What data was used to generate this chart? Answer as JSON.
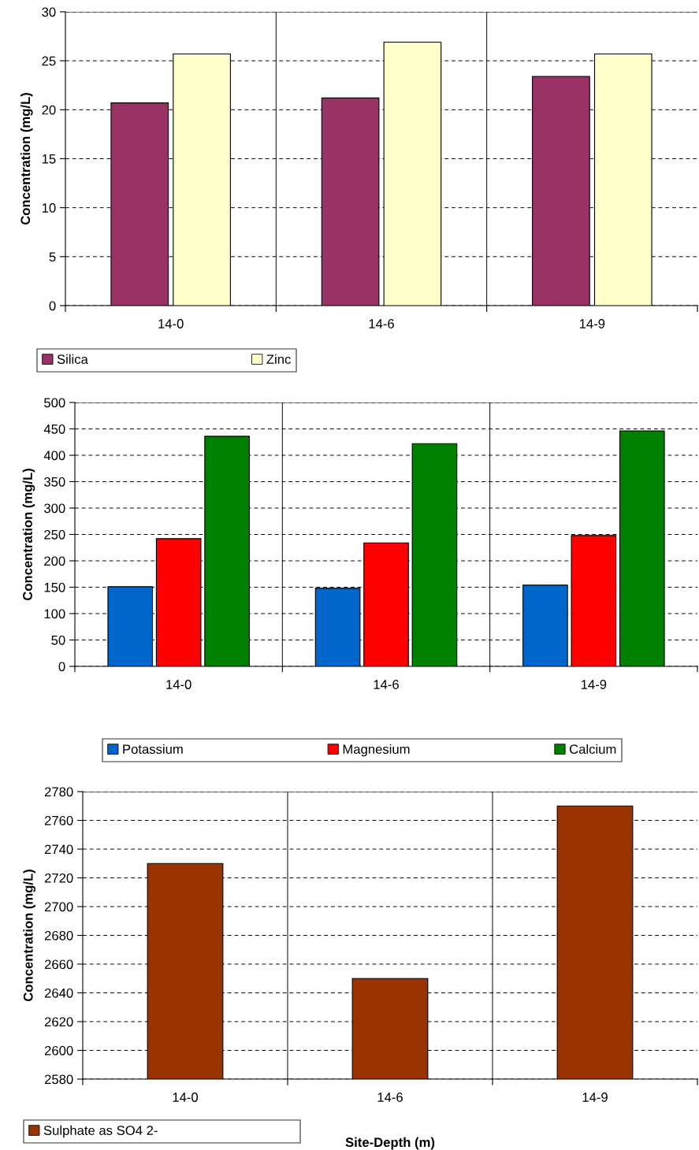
{
  "chart_data": [
    {
      "type": "bar",
      "categories": [
        "14-0",
        "14-6",
        "14-9"
      ],
      "ylabel": "Concentration (mg/L)",
      "ylim": [
        0,
        30
      ],
      "yticks": [
        0,
        5,
        10,
        15,
        20,
        25,
        30
      ],
      "grid": true,
      "legend": "bottom",
      "series": [
        {
          "name": "Silica",
          "color": "#993366",
          "values": [
            20.7,
            21.2,
            23.4
          ]
        },
        {
          "name": "Zinc",
          "color": "#ffffcc",
          "values": [
            25.7,
            26.9,
            25.7
          ]
        }
      ]
    },
    {
      "type": "bar",
      "categories": [
        "14-0",
        "14-6",
        "14-9"
      ],
      "ylabel": "Concentration (mg/L)",
      "ylim": [
        0,
        500
      ],
      "yticks": [
        0,
        50,
        100,
        150,
        200,
        250,
        300,
        350,
        400,
        450,
        500
      ],
      "grid": true,
      "legend": "bottom",
      "series": [
        {
          "name": "Potassium",
          "color": "#0066cc",
          "values": [
            151,
            148,
            154
          ]
        },
        {
          "name": "Magnesium",
          "color": "#ff0000",
          "values": [
            242,
            234,
            248
          ]
        },
        {
          "name": "Calcium",
          "color": "#008000",
          "values": [
            436,
            422,
            446
          ]
        }
      ]
    },
    {
      "type": "bar",
      "categories": [
        "14-0",
        "14-6",
        "14-9"
      ],
      "xlabel": "Site-Depth (m)",
      "ylabel": "Concentration (mg/L)",
      "ylim": [
        2580,
        2780
      ],
      "yticks": [
        2580,
        2600,
        2620,
        2640,
        2660,
        2680,
        2700,
        2720,
        2740,
        2760,
        2780
      ],
      "grid": true,
      "legend": "bottom left",
      "series": [
        {
          "name": "Sulphate as SO4 2-",
          "color": "#993300",
          "values": [
            2730,
            2650,
            2770
          ]
        }
      ]
    }
  ]
}
